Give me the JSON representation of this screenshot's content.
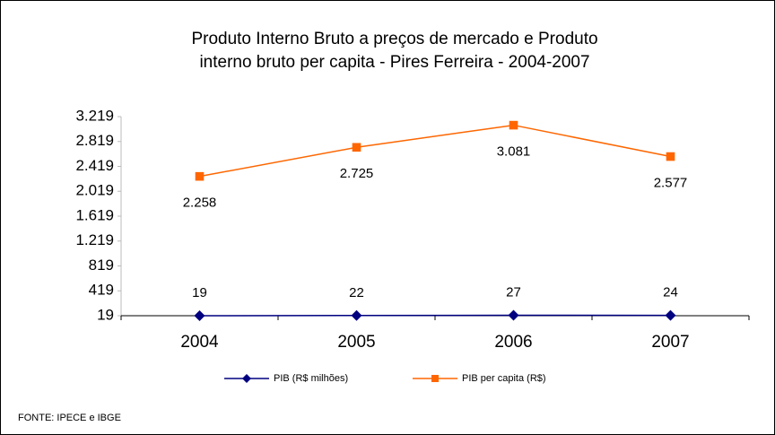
{
  "chart_data": {
    "type": "line",
    "title": [
      "Produto Interno Bruto a preços de mercado e  Produto",
      "interno bruto per capita - Pires Ferreira - 2004-2007"
    ],
    "categories": [
      "2004",
      "2005",
      "2006",
      "2007"
    ],
    "series": [
      {
        "name": "PIB (R$ milhões)",
        "color": "#000080",
        "marker": "diamond",
        "values": [
          19,
          22,
          27,
          24
        ]
      },
      {
        "name": "PIB per capita (R$)",
        "color": "#ff6600",
        "marker": "square",
        "values": [
          2258,
          2725,
          3081,
          2577
        ],
        "value_labels": [
          "2.258",
          "2.725",
          "3.081",
          "2.577"
        ]
      }
    ],
    "ylim": [
      19,
      3219
    ],
    "yticks": [
      19,
      419,
      819,
      {
        "value": 1219,
        "label": "1.219"
      },
      {
        "value": 1619,
        "label": "1.619"
      },
      {
        "value": 2019,
        "label": "2.019"
      },
      {
        "value": 2419,
        "label": "2.419"
      },
      {
        "value": 2819,
        "label": "2.819"
      },
      {
        "value": 3219,
        "label": "3.219"
      }
    ],
    "grid": false,
    "legend": "bottom",
    "source": "FONTE: IPECE e IBGE"
  }
}
